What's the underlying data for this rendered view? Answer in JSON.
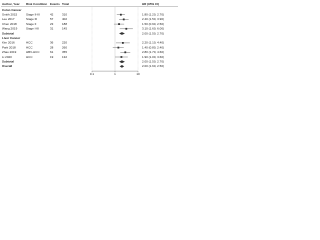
{
  "chart_data": {
    "type": "forest",
    "columns": [
      "Author, Year",
      "Risk Condition",
      "Events",
      "Total",
      "HR (95% CI)"
    ],
    "rows": [
      [
        "Colon Cancer"
      ],
      [
        "Smith 2015",
        "Stage II-III",
        "42",
        "310"
      ],
      [
        "Lee 2017",
        "Stage III",
        "57",
        "402"
      ],
      [
        "Chen 2018",
        "Stage II",
        "23",
        "188"
      ],
      [
        "Wang 2019",
        "Stage I-III",
        "31",
        "145"
      ],
      [
        "Subtotal"
      ],
      [
        "Liver Cancer"
      ],
      [
        "Kim 2016",
        "HCC",
        "36",
        "220"
      ],
      [
        "Park 2018",
        "HCC",
        "28",
        "260"
      ],
      [
        "Zhao 2019",
        "HBV-HCC",
        "61",
        "355"
      ],
      [
        "Li 2020",
        "HCC",
        "19",
        "132"
      ],
      [
        "Subtotal"
      ],
      [
        "Overall"
      ]
    ],
    "values": [
      null,
      1.8,
      2.4,
      1.5,
      3.1,
      2.0,
      null,
      2.2,
      1.4,
      2.8,
      1.9,
      2.0,
      2.0
    ],
    "ci_low": [
      null,
      1.2,
      1.5,
      0.9,
      1.6,
      1.5,
      null,
      1.1,
      0.8,
      1.7,
      1.0,
      1.5,
      1.6
    ],
    "ci_high": [
      null,
      2.7,
      3.9,
      2.5,
      6.0,
      2.7,
      null,
      4.4,
      2.4,
      4.6,
      3.6,
      2.7,
      2.5
    ],
    "value_labels": [
      null,
      "1.80 (1.20, 2.70)",
      "2.40 (1.50, 3.90)",
      "1.50 (0.90, 2.50)",
      "3.10 (1.60, 6.00)",
      "2.00 (1.50, 2.70)",
      null,
      "2.20 (1.10, 4.40)",
      "1.40 (0.80, 2.40)",
      "2.80 (1.70, 4.60)",
      "1.90 (1.00, 3.60)",
      "2.00 (1.50, 2.70)",
      "2.00 (1.60, 2.50)"
    ],
    "xlim": [
      0.1,
      10
    ],
    "xticks": [
      0.1,
      1,
      10
    ],
    "log_x": true,
    "color": "#333333"
  }
}
